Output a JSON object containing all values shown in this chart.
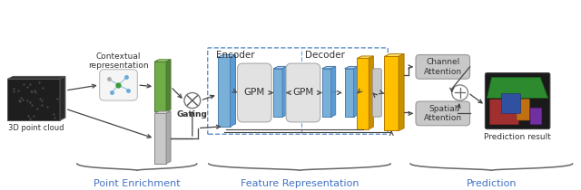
{
  "bg_color": "#ffffff",
  "section_labels": [
    "Point Enrichment",
    "Feature Representation",
    "Prediction"
  ],
  "section_label_color": "#4472c4",
  "encoder_label": "Encoder",
  "decoder_label": "Decoder",
  "label_3d_cloud": "3D point cloud",
  "label_contextual": "Contextual\nrepresentation",
  "label_gating": "Gating",
  "label_gpm": "GPM",
  "label_channel": "Channel\nAttention",
  "label_spatial": "Spatial\nAttention",
  "label_prediction": "Prediction result",
  "arrow_color": "#444444",
  "box_color_blue": "#7ab0d8",
  "box_color_blue_dark": "#5b9bd5",
  "box_color_green": "#70ad47",
  "box_color_gray_light": "#d0d0d0",
  "box_color_yellow": "#ffc000",
  "box_color_attn": "#c8c8c8",
  "dashed_box_color": "#6090c8",
  "pc_color": "#1c1c1c",
  "ctx_box_color": "#f0f0f0",
  "brace_color": "#666666"
}
